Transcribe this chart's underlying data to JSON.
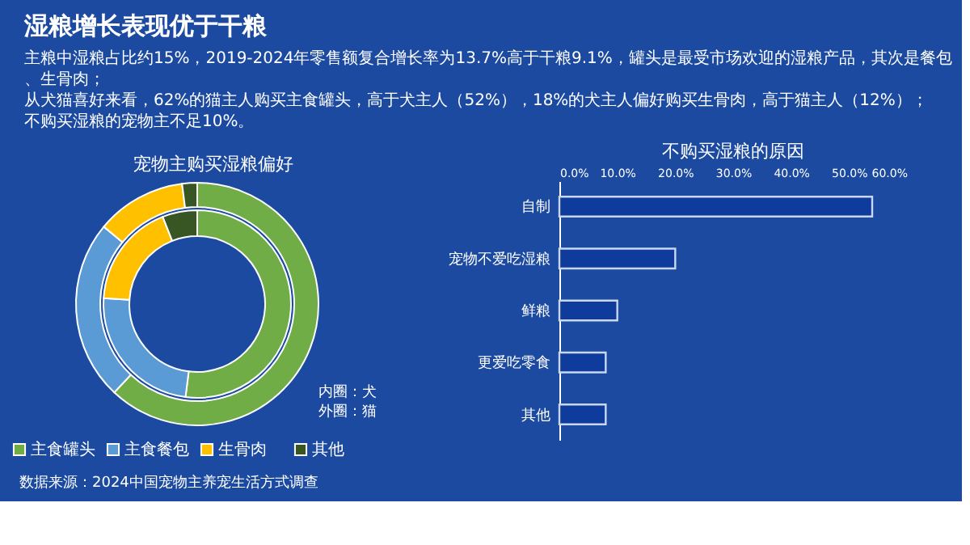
{
  "chart_data": [
    {
      "type": "other",
      "title": "湿粮增长表现优于干粮",
      "annotations": [
        "主粮中湿粮占比约15%，2019-2024年零售额复合增长率为13.7%高于干粮9.1%，罐头是最受市场欢迎的湿粮产品，其次是餐包、生骨肉；",
        "从犬猫喜好来看，62%的猫主人购买主食罐头，高于犬主人（52%），18%的犬主人偏好购买生骨肉，高于猫主人（12%）；",
        "不购买湿粮的宠物主不足10%。"
      ]
    },
    {
      "type": "donut",
      "title": "宠物主购买湿粮偏好",
      "categories": [
        "主食罐头",
        "主食餐包",
        "生骨肉",
        "其他"
      ],
      "colors": [
        "#70ad47",
        "#5b9bd5",
        "#ffc000",
        "#375623"
      ],
      "series": [
        {
          "values": [
            52,
            24,
            18,
            6
          ]
        },
        {
          "values": [
            62,
            24,
            12,
            2
          ]
        }
      ],
      "legend": "bottom",
      "annotations": [
        "内圈：犬",
        "外圈：猫",
        "数据来源：2024中国宠物主养宠生活方式调查"
      ]
    },
    {
      "type": "bar",
      "orientation": "horizontal",
      "title": "不购买湿粮的原因",
      "categories": [
        "自制",
        "宠物不爱吃湿粮",
        "鲜粮",
        "更爱吃零食",
        "其他"
      ],
      "values": [
        54,
        20,
        10,
        8,
        8
      ],
      "color": "#0e3b9c",
      "xlim": [
        0,
        60
      ],
      "xticks": [
        {
          "value": 0,
          "label": "0.0%"
        },
        {
          "value": 10,
          "label": "10.0%"
        },
        {
          "value": 20,
          "label": "20.0%"
        },
        {
          "value": 30,
          "label": "30.0%"
        },
        {
          "value": 40,
          "label": "40.0%"
        },
        {
          "value": 50,
          "label": "50.0%"
        },
        {
          "value": 60,
          "label": "60.0%"
        }
      ],
      "grid": false
    }
  ]
}
